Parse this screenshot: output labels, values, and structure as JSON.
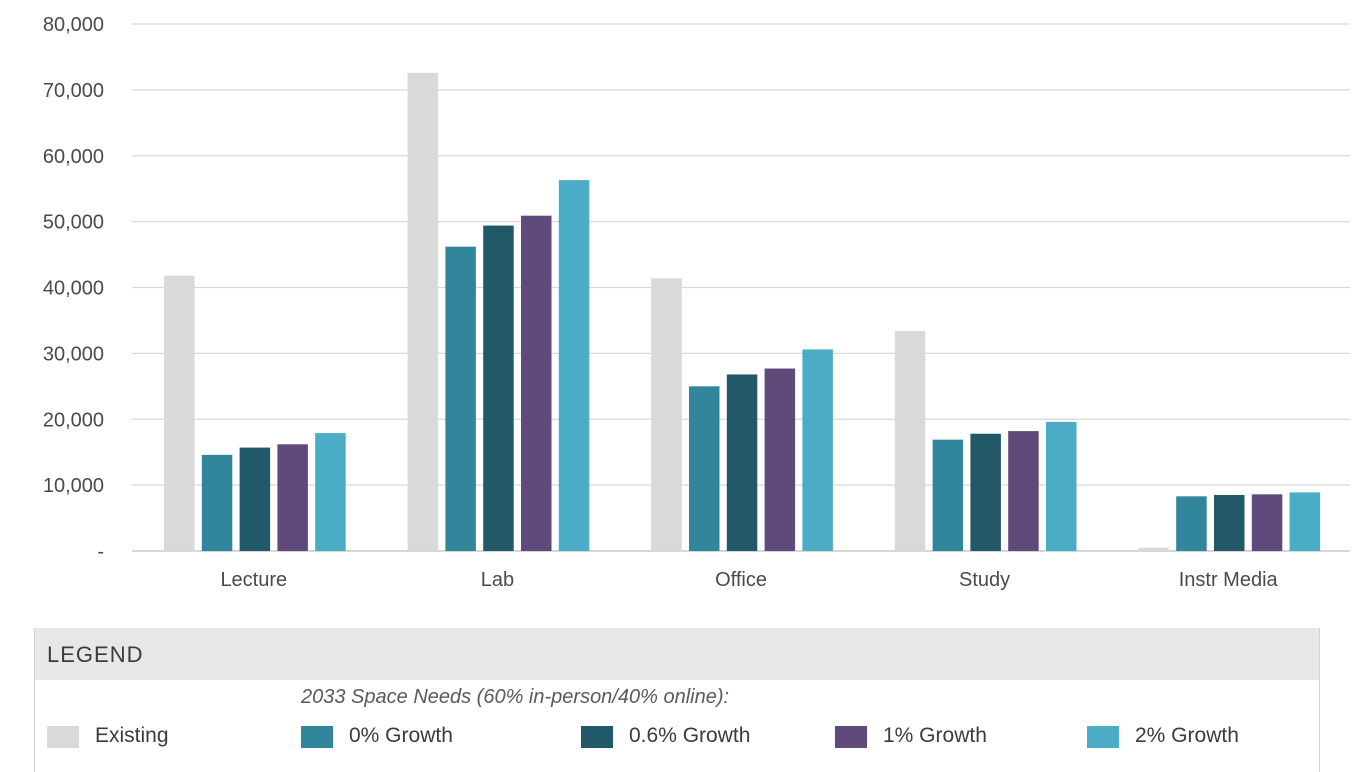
{
  "chart_data": {
    "type": "bar",
    "categories": [
      "Lecture",
      "Lab",
      "Office",
      "Study",
      "Instr Media"
    ],
    "series": [
      {
        "name": "Existing",
        "color": "#d9d9d9",
        "values": [
          41800,
          72600,
          41400,
          33400,
          500
        ]
      },
      {
        "name": "0% Growth",
        "color": "#31869b",
        "values": [
          14600,
          46200,
          25000,
          16900,
          8300
        ]
      },
      {
        "name": "0.6% Growth",
        "color": "#215968",
        "values": [
          15700,
          49400,
          26800,
          17800,
          8500
        ]
      },
      {
        "name": "1% Growth",
        "color": "#604a7b",
        "values": [
          16200,
          50900,
          27700,
          18200,
          8600
        ]
      },
      {
        "name": "2% Growth",
        "color": "#4bacc6",
        "values": [
          17900,
          56300,
          30600,
          19600,
          8900
        ]
      }
    ],
    "y_ticks": [
      "-",
      "10,000",
      "20,000",
      "30,000",
      "40,000",
      "50,000",
      "60,000",
      "70,000",
      "80,000"
    ],
    "ylim": [
      0,
      80000
    ],
    "y_step": 10000,
    "grid": true,
    "legend": "bottom"
  },
  "legend": {
    "title": "LEGEND",
    "subtitle": "2033 Space Needs (60% in-person/40% online):",
    "items": [
      {
        "label": "Existing",
        "color": "#d9d9d9"
      },
      {
        "label": "0% Growth",
        "color": "#31869b"
      },
      {
        "label": "0.6% Growth",
        "color": "#215968"
      },
      {
        "label": "1% Growth",
        "color": "#604a7b"
      },
      {
        "label": "2% Growth",
        "color": "#4bacc6"
      }
    ]
  }
}
